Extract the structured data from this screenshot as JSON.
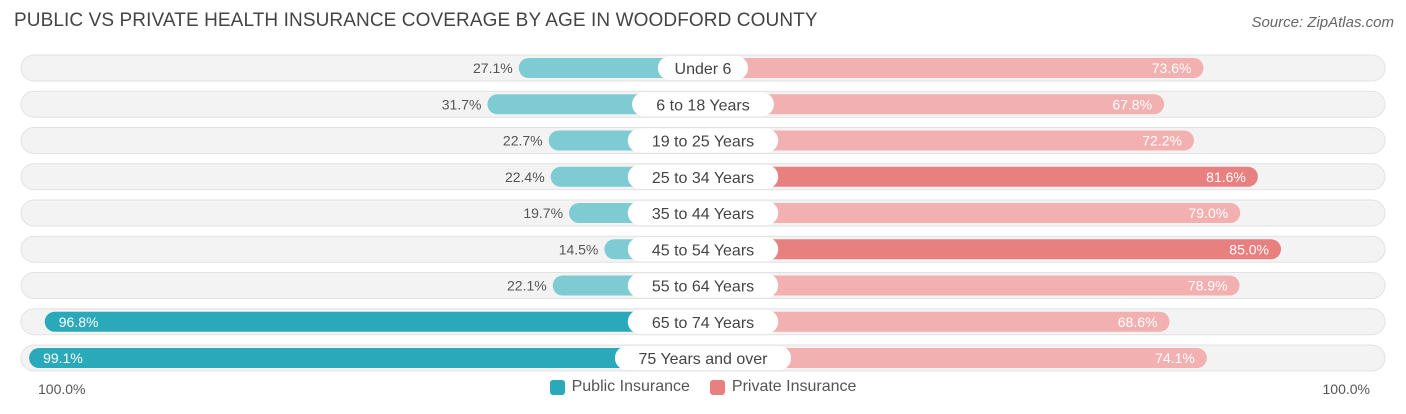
{
  "title": "PUBLIC VS PRIVATE HEALTH INSURANCE COVERAGE BY AGE IN WOODFORD COUNTY",
  "source": "Source: ZipAtlas.com",
  "colors": {
    "public_dark": "#2aa9ba",
    "public_light": "#7fcbd4",
    "private_dark": "#e98080",
    "private_light": "#f2b0b0",
    "track": "#f2f2f2"
  },
  "chart_data": {
    "type": "bar",
    "orientation": "horizontal-diverging",
    "title": "PUBLIC VS PRIVATE HEALTH INSURANCE COVERAGE BY AGE IN WOODFORD COUNTY",
    "categories": [
      "Under 6",
      "6 to 18 Years",
      "19 to 25 Years",
      "25 to 34 Years",
      "35 to 44 Years",
      "45 to 54 Years",
      "55 to 64 Years",
      "65 to 74 Years",
      "75 Years and over"
    ],
    "series": [
      {
        "name": "Public Insurance",
        "values": [
          27.1,
          31.7,
          22.7,
          22.4,
          19.7,
          14.5,
          22.1,
          96.8,
          99.1
        ],
        "labels": [
          "27.1%",
          "31.7%",
          "22.7%",
          "22.4%",
          "19.7%",
          "14.5%",
          "22.1%",
          "96.8%",
          "99.1%"
        ]
      },
      {
        "name": "Private Insurance",
        "values": [
          73.6,
          67.8,
          72.2,
          81.6,
          79.0,
          85.0,
          78.9,
          68.6,
          74.1
        ],
        "labels": [
          "73.6%",
          "67.8%",
          "72.2%",
          "81.6%",
          "79.0%",
          "85.0%",
          "78.9%",
          "68.6%",
          "74.1%"
        ]
      }
    ],
    "xlim": [
      0,
      100
    ],
    "axis_left_label": "100.0%",
    "axis_right_label": "100.0%",
    "legend_position": "bottom-center"
  }
}
